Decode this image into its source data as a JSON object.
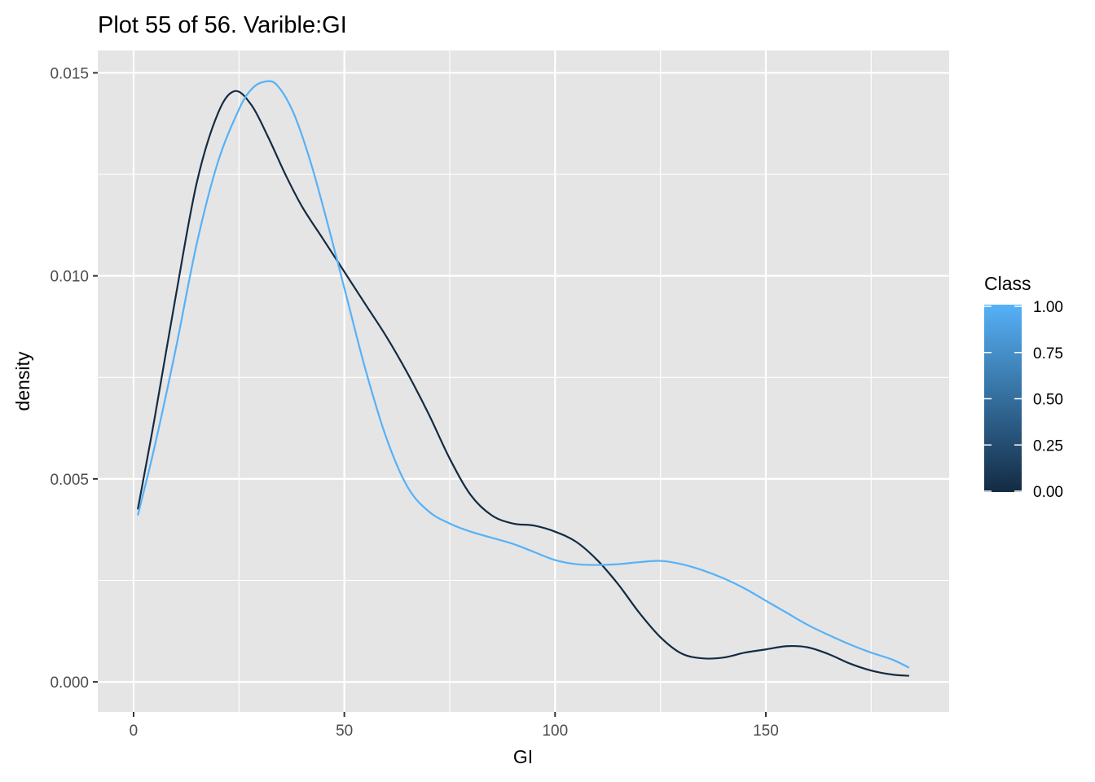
{
  "chart_data": {
    "type": "line",
    "title": "Plot 55 of 56. Varible:GI",
    "xlabel": "GI",
    "ylabel": "density",
    "xlim": [
      -8.5,
      193.5
    ],
    "ylim": [
      -0.00074,
      0.01555
    ],
    "x_ticks": [
      0,
      50,
      100,
      150
    ],
    "x_tick_labels": [
      "0",
      "50",
      "100",
      "150"
    ],
    "x_minor_ticks": [
      25,
      75,
      125,
      175
    ],
    "y_ticks": [
      0.0,
      0.005,
      0.01,
      0.015
    ],
    "y_tick_labels": [
      "0.000",
      "0.005",
      "0.010",
      "0.015"
    ],
    "y_minor_ticks": [
      0.0025,
      0.0075,
      0.0125
    ],
    "grid": true,
    "panel_background": "#e5e5e5",
    "grid_color": "#ffffff",
    "legend": {
      "title": "Class",
      "placement": "right",
      "type": "colorbar",
      "labels": [
        "1.00",
        "0.75",
        "0.50",
        "0.25",
        "0.00"
      ],
      "values": [
        1.0,
        0.75,
        0.5,
        0.25,
        0.0
      ],
      "color_low": "#132b43",
      "color_high": "#56b1f7"
    },
    "series": [
      {
        "class": 0,
        "color": "#132b43",
        "x": [
          1,
          5,
          10,
          15,
          20,
          24,
          28,
          32,
          36,
          40,
          45,
          50,
          55,
          60,
          65,
          70,
          75,
          80,
          85,
          90,
          95,
          100,
          105,
          110,
          115,
          120,
          125,
          130,
          135,
          140,
          145,
          150,
          155,
          160,
          165,
          170,
          175,
          180,
          184
        ],
        "y": [
          0.00425,
          0.0065,
          0.0095,
          0.0123,
          0.014,
          0.01455,
          0.0142,
          0.0134,
          0.0125,
          0.0117,
          0.0109,
          0.0101,
          0.0093,
          0.0085,
          0.0076,
          0.0066,
          0.0055,
          0.0046,
          0.0041,
          0.0039,
          0.00385,
          0.0037,
          0.00345,
          0.003,
          0.0024,
          0.0017,
          0.0011,
          0.0007,
          0.00058,
          0.0006,
          0.00072,
          0.0008,
          0.00088,
          0.00085,
          0.00068,
          0.00045,
          0.00028,
          0.00018,
          0.00015
        ]
      },
      {
        "class": 1,
        "color": "#56b1f7",
        "x": [
          1,
          5,
          10,
          15,
          20,
          25,
          28,
          31,
          34,
          38,
          42,
          46,
          50,
          55,
          60,
          65,
          70,
          75,
          80,
          85,
          90,
          95,
          100,
          105,
          110,
          115,
          120,
          125,
          130,
          135,
          140,
          145,
          150,
          155,
          160,
          165,
          170,
          175,
          180,
          184
        ],
        "y": [
          0.0041,
          0.0058,
          0.0082,
          0.0108,
          0.0128,
          0.0141,
          0.0146,
          0.01478,
          0.0147,
          0.014,
          0.0128,
          0.0113,
          0.0097,
          0.0077,
          0.006,
          0.0048,
          0.0042,
          0.0039,
          0.0037,
          0.00355,
          0.0034,
          0.0032,
          0.003,
          0.0029,
          0.00288,
          0.0029,
          0.00295,
          0.00298,
          0.0029,
          0.00275,
          0.00255,
          0.0023,
          0.002,
          0.0017,
          0.0014,
          0.00115,
          0.00092,
          0.00072,
          0.00055,
          0.00035
        ]
      }
    ]
  }
}
